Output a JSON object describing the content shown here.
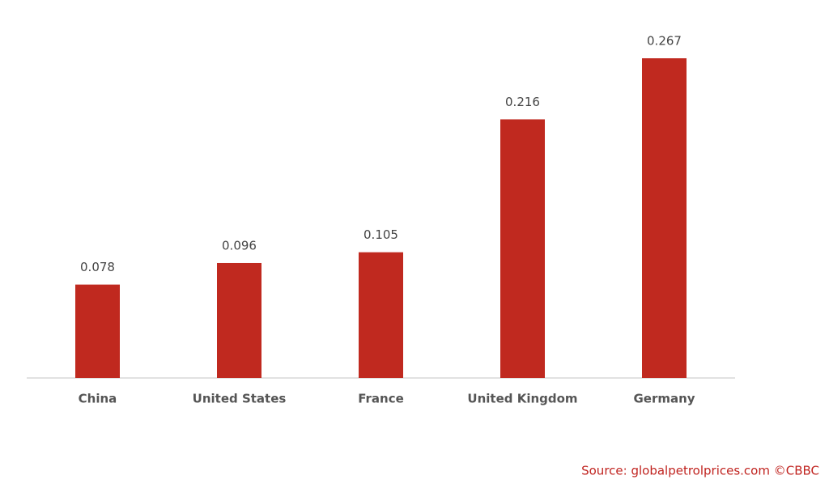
{
  "chart_data": {
    "type": "bar",
    "categories": [
      "China",
      "United States",
      "France",
      "United Kingdom",
      "Germany"
    ],
    "values": [
      0.078,
      0.096,
      0.105,
      0.216,
      0.267
    ],
    "color": "#c0291f",
    "source": "Source: globalpetrolprices.com ©CBBC"
  }
}
